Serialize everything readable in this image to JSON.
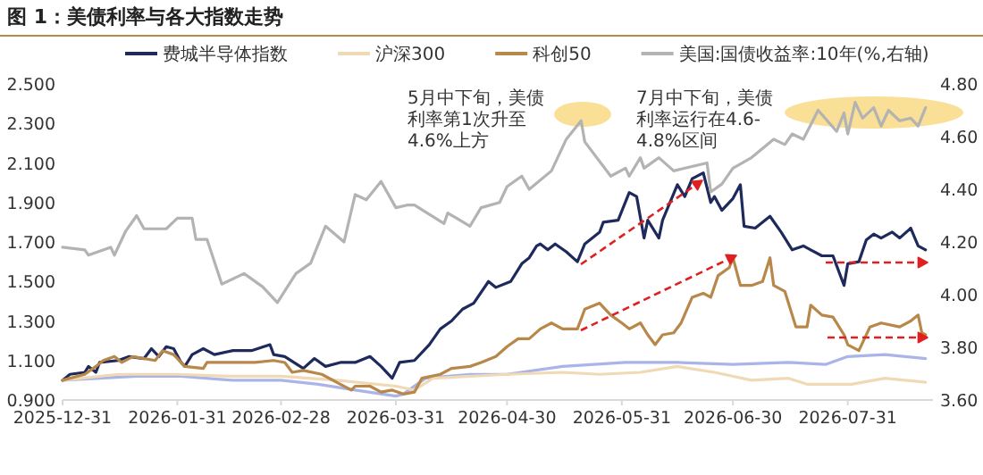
{
  "chart_data": {
    "type": "line",
    "title": "图 1：美债利率与各大指数走势",
    "legend": "top",
    "annotations": [
      "5月中下旬，美债利率第1次升至4.6%上方",
      "7月中下旬，美债利率运行在4.6-4.8%区间"
    ],
    "xlim": [
      "2025-12-31",
      "2026-08-23"
    ],
    "xticks": [
      "2025-12-31",
      "2026-01-31",
      "2026-02-28",
      "2026-03-31",
      "2026-04-30",
      "2026-05-31",
      "2026-06-30",
      "2026-07-31"
    ],
    "ylim": [
      0.9,
      2.5
    ],
    "yticks": [
      {
        "value": 0.9,
        "label": "0.900"
      },
      {
        "value": 1.1,
        "label": "1.100"
      },
      {
        "value": 1.3,
        "label": "1.300"
      },
      {
        "value": 1.5,
        "label": "1.500"
      },
      {
        "value": 1.7,
        "label": "1.700"
      },
      {
        "value": 1.9,
        "label": "1.900"
      },
      {
        "value": 2.1,
        "label": "2.100"
      },
      {
        "value": 2.3,
        "label": "2.300"
      },
      {
        "value": 2.5,
        "label": "2.500"
      }
    ],
    "y2lim": [
      3.6,
      4.8
    ],
    "y2ticks": [
      {
        "value": 3.6,
        "label": "3.60"
      },
      {
        "value": 3.8,
        "label": "3.80"
      },
      {
        "value": 4.0,
        "label": "4.00"
      },
      {
        "value": 4.2,
        "label": "4.20"
      },
      {
        "value": 4.4,
        "label": "4.40"
      },
      {
        "value": 4.6,
        "label": "4.60"
      },
      {
        "value": 4.8,
        "label": "4.80"
      }
    ],
    "series": [
      {
        "color": "#aab4e8",
        "x": [
          "2025-12-31",
          "2026-01-10",
          "2026-01-20",
          "2026-02-01",
          "2026-02-15",
          "2026-02-28",
          "2026-03-10",
          "2026-03-20",
          "2026-03-31",
          "2026-04-02",
          "2026-04-08",
          "2026-04-20",
          "2026-04-30",
          "2026-05-15",
          "2026-06-01",
          "2026-06-15",
          "2026-06-30",
          "2026-07-15",
          "2026-07-25",
          "2026-07-31",
          "2026-08-10",
          "2026-08-21"
        ],
        "values": [
          1.0,
          1.01,
          1.02,
          1.02,
          1.0,
          1.0,
          0.98,
          0.95,
          0.92,
          0.93,
          1.01,
          1.03,
          1.03,
          1.07,
          1.09,
          1.09,
          1.08,
          1.09,
          1.08,
          1.12,
          1.13,
          1.11
        ]
      },
      {
        "name": "费城半导体指数",
        "color": "#1f2a5c",
        "x": [
          "2025-12-31",
          "2026-01-02",
          "2026-01-06",
          "2026-01-07",
          "2026-01-09",
          "2026-01-10",
          "2026-01-15",
          "2026-01-18",
          "2026-01-22",
          "2026-01-24",
          "2026-01-26",
          "2026-01-28",
          "2026-01-30",
          "2026-02-01",
          "2026-02-02",
          "2026-02-04",
          "2026-02-07",
          "2026-02-10",
          "2026-02-15",
          "2026-02-20",
          "2026-02-25",
          "2026-02-26",
          "2026-03-01",
          "2026-03-06",
          "2026-03-09",
          "2026-03-12",
          "2026-03-16",
          "2026-03-20",
          "2026-03-24",
          "2026-03-27",
          "2026-03-30",
          "2026-04-01",
          "2026-04-05",
          "2026-04-09",
          "2026-04-12",
          "2026-04-15",
          "2026-04-18",
          "2026-04-21",
          "2026-04-25",
          "2026-04-27",
          "2026-05-01",
          "2026-05-04",
          "2026-05-06",
          "2026-05-08",
          "2026-05-09",
          "2026-05-11",
          "2026-05-13",
          "2026-05-16",
          "2026-05-19",
          "2026-05-21",
          "2026-05-25",
          "2026-05-26",
          "2026-05-30",
          "2026-06-02",
          "2026-06-04",
          "2026-06-06",
          "2026-06-07",
          "2026-06-10",
          "2026-06-11",
          "2026-06-15",
          "2026-06-17",
          "2026-06-19",
          "2026-06-22",
          "2026-06-24",
          "2026-06-25",
          "2026-06-27",
          "2026-06-30",
          "2026-07-02",
          "2026-07-03",
          "2026-07-06",
          "2026-07-10",
          "2026-07-13",
          "2026-07-16",
          "2026-07-19",
          "2026-07-21",
          "2026-07-24",
          "2026-07-27",
          "2026-07-30",
          "2026-07-31",
          "2026-08-03",
          "2026-08-05",
          "2026-08-07",
          "2026-08-09",
          "2026-08-12",
          "2026-08-14",
          "2026-08-17",
          "2026-08-19",
          "2026-08-21"
        ],
        "values": [
          1.0,
          1.03,
          1.04,
          1.07,
          1.04,
          1.09,
          1.1,
          1.12,
          1.11,
          1.16,
          1.12,
          1.17,
          1.16,
          1.09,
          1.07,
          1.13,
          1.16,
          1.13,
          1.15,
          1.15,
          1.18,
          1.13,
          1.12,
          1.06,
          1.11,
          1.07,
          1.09,
          1.09,
          1.12,
          1.07,
          1.01,
          1.09,
          1.1,
          1.18,
          1.26,
          1.3,
          1.36,
          1.39,
          1.5,
          1.47,
          1.5,
          1.59,
          1.62,
          1.68,
          1.69,
          1.66,
          1.69,
          1.65,
          1.6,
          1.69,
          1.75,
          1.8,
          1.81,
          1.95,
          1.93,
          1.72,
          1.81,
          1.72,
          1.81,
          1.99,
          1.93,
          2.02,
          2.05,
          1.9,
          1.93,
          1.86,
          1.92,
          1.99,
          1.78,
          1.77,
          1.83,
          1.75,
          1.66,
          1.68,
          1.66,
          1.63,
          1.63,
          1.48,
          1.59,
          1.6,
          1.71,
          1.74,
          1.72,
          1.75,
          1.72,
          1.77,
          1.68,
          1.66
        ]
      },
      {
        "name": "沪深300",
        "color": "#f0d9b5",
        "x": [
          "2025-12-31",
          "2026-01-15",
          "2026-01-31",
          "2026-02-15",
          "2026-02-28",
          "2026-03-15",
          "2026-03-31",
          "2026-04-05",
          "2026-04-10",
          "2026-04-30",
          "2026-05-15",
          "2026-05-25",
          "2026-06-05",
          "2026-06-15",
          "2026-06-25",
          "2026-07-05",
          "2026-07-15",
          "2026-07-20",
          "2026-08-01",
          "2026-08-10",
          "2026-08-21"
        ],
        "values": [
          1.0,
          1.03,
          1.03,
          1.02,
          1.02,
          1.0,
          0.97,
          0.95,
          1.01,
          1.03,
          1.04,
          1.03,
          1.04,
          1.07,
          1.04,
          1.0,
          1.01,
          0.98,
          0.98,
          1.01,
          0.99
        ]
      },
      {
        "name": "科创50",
        "color": "#b8874a",
        "x": [
          "2025-12-31",
          "2026-01-06",
          "2026-01-09",
          "2026-01-11",
          "2026-01-14",
          "2026-01-16",
          "2026-01-19",
          "2026-01-25",
          "2026-01-27",
          "2026-01-30",
          "2026-02-02",
          "2026-02-07",
          "2026-02-08",
          "2026-02-13",
          "2026-02-21",
          "2026-02-26",
          "2026-03-01",
          "2026-03-03",
          "2026-03-06",
          "2026-03-11",
          "2026-03-16",
          "2026-03-19",
          "2026-03-20",
          "2026-03-24",
          "2026-03-27",
          "2026-03-30",
          "2026-04-02",
          "2026-04-05",
          "2026-04-07",
          "2026-04-12",
          "2026-04-15",
          "2026-04-20",
          "2026-04-23",
          "2026-04-27",
          "2026-04-30",
          "2026-05-03",
          "2026-05-06",
          "2026-05-09",
          "2026-05-12",
          "2026-05-15",
          "2026-05-19",
          "2026-05-21",
          "2026-05-25",
          "2026-05-28",
          "2026-05-31",
          "2026-06-02",
          "2026-06-05",
          "2026-06-07",
          "2026-06-09",
          "2026-06-11",
          "2026-06-14",
          "2026-06-16",
          "2026-06-19",
          "2026-06-22",
          "2026-06-24",
          "2026-06-26",
          "2026-06-29",
          "2026-06-30",
          "2026-07-02",
          "2026-07-05",
          "2026-07-08",
          "2026-07-10",
          "2026-07-11",
          "2026-07-14",
          "2026-07-17",
          "2026-07-20",
          "2026-07-21",
          "2026-07-24",
          "2026-07-27",
          "2026-07-30",
          "2026-07-31",
          "2026-08-03",
          "2026-08-06",
          "2026-08-09",
          "2026-08-14",
          "2026-08-17",
          "2026-08-19",
          "2026-08-20",
          "2026-08-21"
        ],
        "values": [
          1.0,
          1.03,
          1.07,
          1.1,
          1.12,
          1.09,
          1.12,
          1.1,
          1.15,
          1.13,
          1.07,
          1.06,
          1.09,
          1.09,
          1.09,
          1.1,
          1.09,
          1.04,
          1.05,
          1.03,
          0.98,
          0.95,
          0.97,
          0.97,
          0.94,
          0.95,
          0.93,
          0.94,
          1.01,
          1.03,
          1.06,
          1.07,
          1.09,
          1.12,
          1.17,
          1.21,
          1.21,
          1.26,
          1.29,
          1.26,
          1.26,
          1.36,
          1.39,
          1.33,
          1.29,
          1.26,
          1.29,
          1.23,
          1.18,
          1.23,
          1.24,
          1.29,
          1.42,
          1.44,
          1.42,
          1.53,
          1.57,
          1.62,
          1.48,
          1.48,
          1.5,
          1.62,
          1.48,
          1.45,
          1.27,
          1.27,
          1.38,
          1.33,
          1.32,
          1.23,
          1.18,
          1.15,
          1.27,
          1.29,
          1.27,
          1.3,
          1.33,
          1.24,
          1.23
        ]
      },
      {
        "name": "美国:国债收益率:10年(%,右轴)",
        "color": "#b3b3b3",
        "axis": "y2",
        "x": [
          "2025-12-31",
          "2026-01-06",
          "2026-01-07",
          "2026-01-13",
          "2026-01-14",
          "2026-01-17",
          "2026-01-20",
          "2026-01-22",
          "2026-01-28",
          "2026-01-31",
          "2026-02-04",
          "2026-02-05",
          "2026-02-08",
          "2026-02-12",
          "2026-02-18",
          "2026-02-23",
          "2026-02-27",
          "2026-03-04",
          "2026-03-08",
          "2026-03-12",
          "2026-03-17",
          "2026-03-20",
          "2026-03-23",
          "2026-03-27",
          "2026-03-31",
          "2026-04-03",
          "2026-04-05",
          "2026-04-13",
          "2026-04-14",
          "2026-04-20",
          "2026-04-23",
          "2026-04-28",
          "2026-04-30",
          "2026-05-04",
          "2026-05-06",
          "2026-05-12",
          "2026-05-16",
          "2026-05-20",
          "2026-05-21",
          "2026-05-28",
          "2026-06-01",
          "2026-06-02",
          "2026-06-05",
          "2026-06-06",
          "2026-06-10",
          "2026-06-14",
          "2026-06-23",
          "2026-06-24",
          "2026-06-27",
          "2026-06-30",
          "2026-07-05",
          "2026-07-11",
          "2026-07-14",
          "2026-07-16",
          "2026-07-19",
          "2026-07-23",
          "2026-07-28",
          "2026-07-30",
          "2026-07-31",
          "2026-08-02",
          "2026-08-04",
          "2026-08-07",
          "2026-08-09",
          "2026-08-11",
          "2026-08-14",
          "2026-08-17",
          "2026-08-19",
          "2026-08-21"
        ],
        "values": [
          4.18,
          4.17,
          4.15,
          4.18,
          4.15,
          4.24,
          4.3,
          4.25,
          4.25,
          4.29,
          4.29,
          4.21,
          4.21,
          4.04,
          4.08,
          4.03,
          3.97,
          4.08,
          4.12,
          4.26,
          4.2,
          4.38,
          4.36,
          4.43,
          4.33,
          4.34,
          4.34,
          4.27,
          4.31,
          4.26,
          4.33,
          4.35,
          4.41,
          4.45,
          4.4,
          4.47,
          4.59,
          4.66,
          4.58,
          4.45,
          4.48,
          4.45,
          4.52,
          4.48,
          4.52,
          4.47,
          4.5,
          4.39,
          4.42,
          4.48,
          4.52,
          4.59,
          4.57,
          4.61,
          4.59,
          4.7,
          4.62,
          4.69,
          4.61,
          4.73,
          4.67,
          4.71,
          4.64,
          4.7,
          4.66,
          4.67,
          4.64,
          4.71
        ]
      }
    ]
  }
}
